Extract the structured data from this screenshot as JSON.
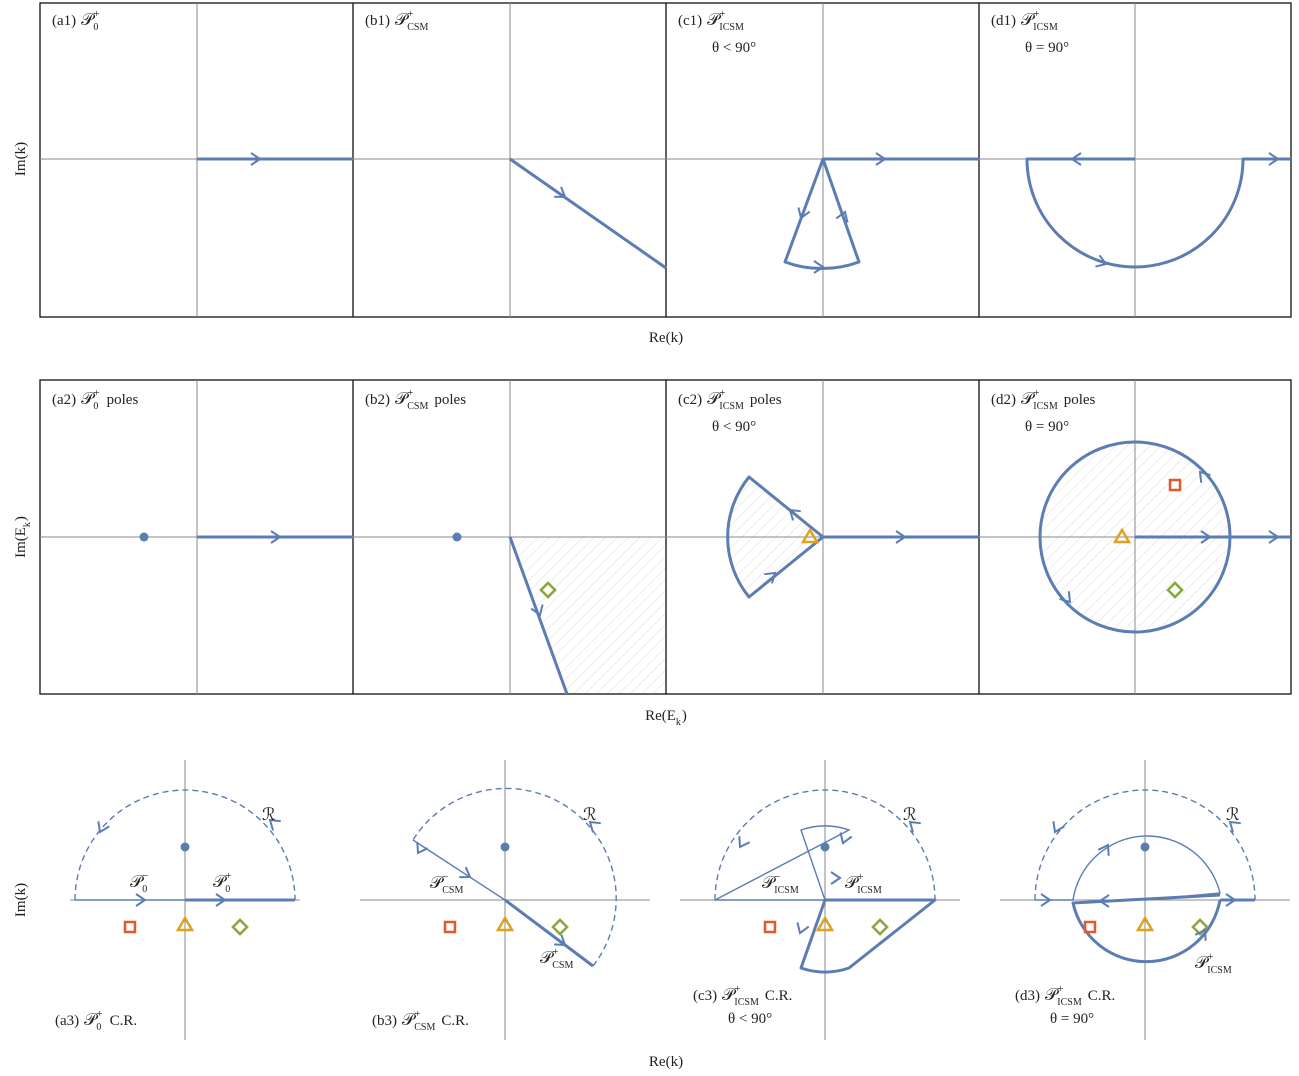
{
  "symbol": "𝒫",
  "curve_symbol": "ℛ",
  "row1": {
    "y_label": "Im(k)",
    "x_label": "Re(k)",
    "panels": [
      {
        "tag": "(a1)",
        "sub": "0",
        "sup": "+"
      },
      {
        "tag": "(b1)",
        "sub": "CSM",
        "sup": "+"
      },
      {
        "tag": "(c1)",
        "sub": "ICSM",
        "sup": "+",
        "condition": "θ < 90°"
      },
      {
        "tag": "(d1)",
        "sub": "ICSM",
        "sup": "+",
        "condition": "θ = 90°"
      }
    ]
  },
  "row2": {
    "y_label": {
      "pre": "Im(E",
      "sub": "k",
      "post": ")"
    },
    "x_label": {
      "pre": "Re(E",
      "sub": "k",
      "post": ")"
    },
    "panels": [
      {
        "tag": "(a2)",
        "sub": "0",
        "sup": "+",
        "suffix": "poles"
      },
      {
        "tag": "(b2)",
        "sub": "CSM",
        "sup": "+",
        "suffix": "poles"
      },
      {
        "tag": "(c2)",
        "sub": "ICSM",
        "sup": "+",
        "suffix": "poles",
        "condition": "θ < 90°"
      },
      {
        "tag": "(d2)",
        "sub": "ICSM",
        "sup": "+",
        "suffix": "poles",
        "condition": "θ = 90°"
      }
    ]
  },
  "row3": {
    "y_label": "Im(k)",
    "x_label": "Re(k)",
    "panels": [
      {
        "tag": "(a3)",
        "sub": "0",
        "sup": "+",
        "suffix": "C.R.",
        "curves": [
          {
            "sub": "0",
            "sup": "−"
          },
          {
            "sub": "0",
            "sup": "+"
          }
        ]
      },
      {
        "tag": "(b3)",
        "sub": "CSM",
        "sup": "+",
        "suffix": "C.R.",
        "curves": [
          {
            "sub": "CSM",
            "sup": "−"
          },
          {
            "sub": "CSM",
            "sup": "+"
          }
        ]
      },
      {
        "tag": "(c3)",
        "sub": "ICSM",
        "sup": "+",
        "suffix": "C.R.",
        "condition": "θ < 90°",
        "curves": [
          {
            "sub": "ICSM",
            "sup": "−"
          },
          {
            "sub": "ICSM",
            "sup": "+"
          }
        ]
      },
      {
        "tag": "(d3)",
        "sub": "ICSM",
        "sup": "+",
        "suffix": "C.R.",
        "condition": "θ = 90°",
        "curves": [
          {
            "sub": "ICSM",
            "sup": "+"
          }
        ]
      }
    ]
  }
}
